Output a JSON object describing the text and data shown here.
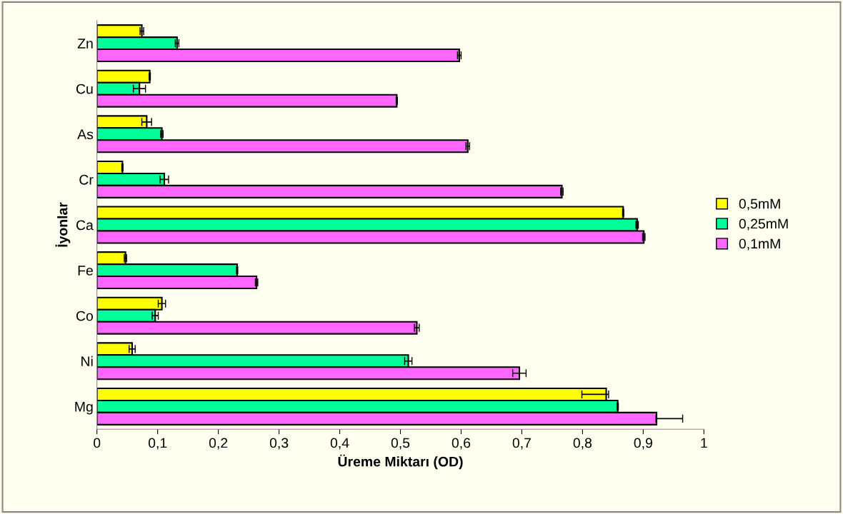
{
  "chart_data": {
    "type": "bar",
    "orientation": "horizontal",
    "xlabel": "Üreme Miktarı (OD)",
    "ylabel": "İyonlar",
    "categories": [
      "Zn",
      "Cu",
      "As",
      "Cr",
      "Ca",
      "Fe",
      "Co",
      "Ni",
      "Mg"
    ],
    "series": [
      {
        "name": "0,5mM",
        "color": "#ffff00",
        "values": [
          0.074,
          0.087,
          0.082,
          0.042,
          0.867,
          0.047,
          0.107,
          0.058,
          0.839
        ],
        "errors": [
          0.003,
          0.001,
          0.008,
          0.001,
          0.001,
          0.002,
          0.006,
          0.005,
          [
            0.799,
            0.843
          ]
        ]
      },
      {
        "name": "0,25mM",
        "color": "#00ff99",
        "values": [
          0.132,
          0.07,
          0.107,
          0.111,
          0.89,
          0.231,
          0.096,
          0.513,
          0.858
        ],
        "errors": [
          0.003,
          0.01,
          0.002,
          0.007,
          0.002,
          0.001,
          0.005,
          0.006,
          0.001
        ]
      },
      {
        "name": "0,1mM",
        "color": "#ff66ff",
        "values": [
          0.597,
          0.494,
          0.611,
          0.766,
          0.901,
          0.263,
          0.527,
          0.696,
          0.922
        ],
        "errors": [
          0.003,
          0.001,
          0.003,
          0.002,
          0.002,
          0.002,
          0.004,
          0.011,
          [
            0.921,
            0.965
          ]
        ]
      }
    ],
    "xlim": [
      0,
      1
    ],
    "xticks": [
      0,
      {
        "value": 0.1,
        "label": "0,1"
      },
      {
        "value": 0.2,
        "label": "0,2"
      },
      {
        "value": 0.3,
        "label": "0,3"
      },
      {
        "value": 0.4,
        "label": "0,4"
      },
      {
        "value": 0.5,
        "label": "0,5"
      },
      {
        "value": 0.6,
        "label": "0,6"
      },
      {
        "value": 0.7,
        "label": "0,7"
      },
      {
        "value": 0.8,
        "label": "0,8"
      },
      {
        "value": 0.9,
        "label": "0,9"
      },
      1
    ],
    "grid": false,
    "legend": "right"
  }
}
